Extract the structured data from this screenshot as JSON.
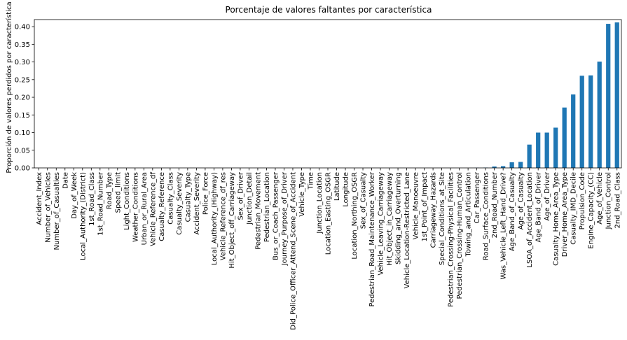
{
  "chart_data": {
    "type": "bar",
    "title": "Porcentaje de valores faltantes por característica",
    "xlabel": "",
    "ylabel": "Proporción de valores perdidos por característica",
    "ylim": [
      0,
      0.42
    ],
    "yticks": [
      "0.00",
      "0.05",
      "0.10",
      "0.15",
      "0.20",
      "0.25",
      "0.30",
      "0.35",
      "0.40"
    ],
    "ytick_values": [
      0,
      0.05,
      0.1,
      0.15,
      0.2,
      0.25,
      0.3,
      0.35,
      0.4
    ],
    "bar_color": "#1f77b4",
    "categories": [
      "Accident_Index",
      "Number_of_Vehicles",
      "Number_of_Casualties",
      "Date",
      "Day_of_Week",
      "Local_Authority_(District)",
      "1st_Road_Class",
      "1st_Road_Number",
      "Road_Type",
      "Speed_limit",
      "Light_Conditions",
      "Weather_Conditions",
      "Urban_or_Rural_Area",
      "Vehicle_Reference_df",
      "Casualty_Reference",
      "Casualty_Class",
      "Casualty_Severity",
      "Casualty_Type",
      "Accident_Severity",
      "Police_Force",
      "Local_Authority_(Highway)",
      "Vehicle_Reference_df_res",
      "Hit_Object_off_Carriageway",
      "Sex_of_Driver",
      "Junction_Detail",
      "Pedestrian_Movement",
      "Pedestrian_Location",
      "Bus_or_Coach_Passenger",
      "Journey_Purpose_of_Driver",
      "Did_Police_Officer_Attend_Scene_of_Accident",
      "Vehicle_Type",
      "Time",
      "Junction_Location",
      "Location_Easting_OSGR",
      "Latitude",
      "Longitude",
      "Location_Northing_OSGR",
      "Sex_of_Casualty",
      "Pedestrian_Road_Maintenance_Worker",
      "Vehicle_Leaving_Carriageway",
      "Hit_Object_in_Carriageway",
      "Skidding_and_Overturning",
      "Vehicle_Location-Restricted_Lane",
      "Vehicle_Manoeuvre",
      "1st_Point_of_Impact",
      "Carriageway_Hazards",
      "Special_Conditions_at_Site",
      "Pedestrian_Crossing-Physical_Facilities",
      "Pedestrian_Crossing-Human_Control",
      "Towing_and_Articulation",
      "Car_Passenger",
      "Road_Surface_Conditions",
      "2nd_Road_Number",
      "Was_Vehicle_Left_Hand_Drive?",
      "Age_Band_of_Casualty",
      "Age_of_Casualty",
      "LSOA_of_Accident_Location",
      "Age_Band_of_Driver",
      "Age_of_Driver",
      "Casualty_Home_Area_Type",
      "Driver_Home_Area_Type",
      "Casualty_IMD_Decile",
      "Propulsion_Code",
      "Engine_Capacity_(CC)",
      "Age_of_Vehicle",
      "Junction_Control",
      "2nd_Road_Class"
    ],
    "values": [
      0,
      0,
      0,
      0,
      0,
      0,
      0,
      0,
      0,
      0,
      0,
      0,
      0,
      0,
      0,
      0,
      0,
      0,
      0,
      0,
      0,
      0,
      0,
      0,
      0,
      0,
      0,
      0,
      0,
      0,
      0,
      0,
      0,
      0,
      0,
      0,
      0,
      0,
      0,
      0,
      0,
      0,
      0,
      0,
      0,
      0,
      0,
      0,
      0,
      0,
      0.0005,
      0.001,
      0.004,
      0.005,
      0.016,
      0.017,
      0.066,
      0.1,
      0.1,
      0.114,
      0.171,
      0.208,
      0.261,
      0.262,
      0.301,
      0.408,
      0.412
    ]
  }
}
